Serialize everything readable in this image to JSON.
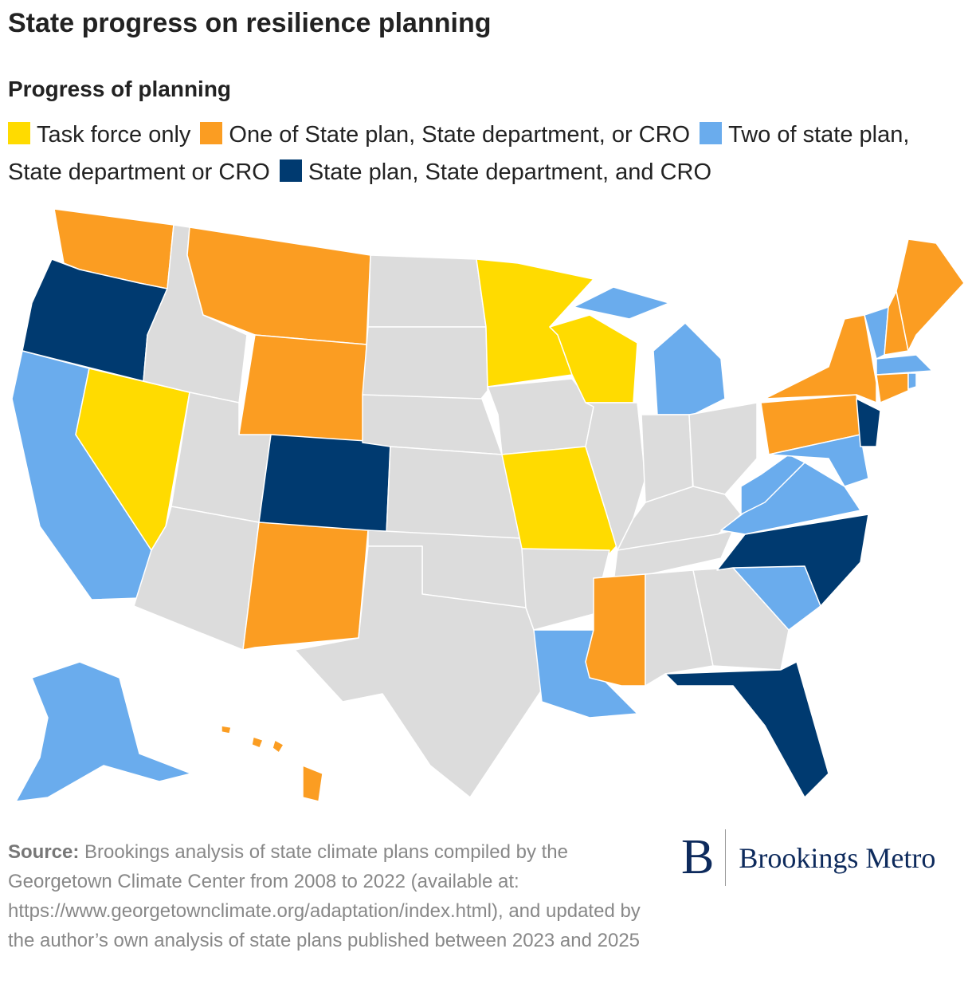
{
  "title": "State progress on resilience planning",
  "legend": {
    "title": "Progress of planning",
    "items": [
      {
        "label": "Task force only",
        "color": "#ffdb00"
      },
      {
        "label": "One of State plan, State department, or CRO",
        "color": "#fb9d22"
      },
      {
        "label": "Two of state plan, State department or CRO",
        "color": "#6aaced"
      },
      {
        "label": "State plan, State department, and CRO",
        "color": "#003a70"
      }
    ]
  },
  "source": {
    "label": "Source:",
    "text": "Brookings analysis of state climate plans compiled by the Georgetown Climate Center from 2008 to 2022 (available at: https://www.georgetownclimate.org/adaptation/index.html), and updated by the author’s own analysis of state plans published between 2023 and 2025"
  },
  "logo": {
    "mark": "B",
    "text": "Brookings Metro"
  }
}
